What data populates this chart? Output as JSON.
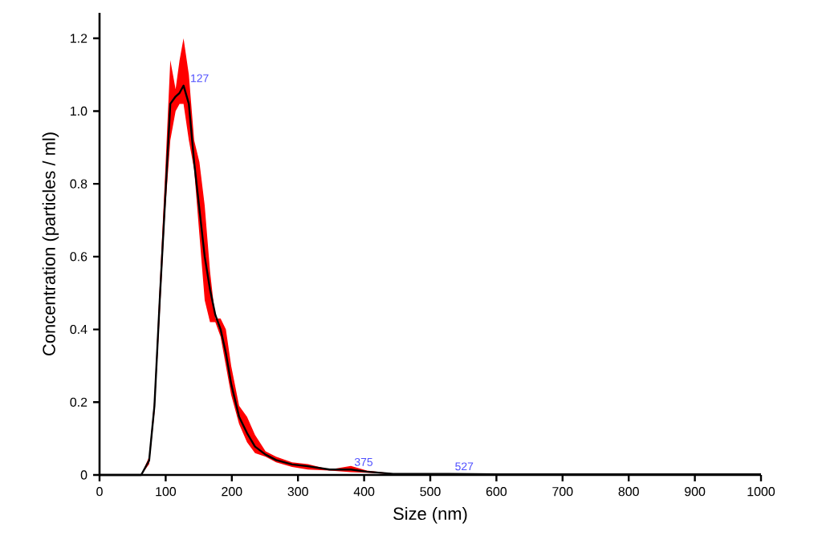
{
  "chart_data": {
    "type": "line",
    "xlabel": "Size (nm)",
    "ylabel": "Concentration (particles / ml)",
    "xlim": [
      0,
      1000
    ],
    "ylim": [
      0,
      1.27
    ],
    "xticks": [
      0,
      100,
      200,
      300,
      400,
      500,
      600,
      700,
      800,
      900,
      1000
    ],
    "yticks": [
      0,
      0.2,
      0.4,
      0.6,
      0.8,
      {
        "value": 1,
        "label": "1.0"
      },
      1.2
    ],
    "series": [
      {
        "color": "#000000",
        "x": [
          0,
          63,
          75,
          83,
          91,
          99,
          107,
          115,
          121,
          127,
          135,
          143,
          151,
          159,
          167,
          175,
          183,
          191,
          199,
          211,
          223,
          235,
          251,
          267,
          291,
          315,
          348,
          380,
          404,
          444,
          527,
          600,
          1000
        ],
        "values": [
          0,
          0,
          0.04,
          0.19,
          0.48,
          0.75,
          1.02,
          1.04,
          1.05,
          1.07,
          1.02,
          0.86,
          0.73,
          0.6,
          0.51,
          0.44,
          0.4,
          0.335,
          0.25,
          0.16,
          0.115,
          0.078,
          0.056,
          0.041,
          0.029,
          0.024,
          0.015,
          0.015,
          0.009,
          0.003,
          0.003,
          0.002,
          0.002
        ],
        "upper": [
          0,
          0,
          0.05,
          0.21,
          0.52,
          0.82,
          1.14,
          1.06,
          1.14,
          1.2,
          1.1,
          0.92,
          0.86,
          0.74,
          0.56,
          0.43,
          0.43,
          0.4,
          0.3,
          0.19,
          0.16,
          0.11,
          0.065,
          0.05,
          0.035,
          0.03,
          0.015,
          0.025,
          0.012,
          0.004,
          0.003,
          0.002,
          0.002
        ],
        "lower": [
          0,
          0,
          0.03,
          0.17,
          0.44,
          0.72,
          0.92,
          1.0,
          1.02,
          1.02,
          0.92,
          0.84,
          0.66,
          0.48,
          0.42,
          0.42,
          0.38,
          0.3,
          0.22,
          0.14,
          0.09,
          0.06,
          0.05,
          0.035,
          0.022,
          0.015,
          0.012,
          0.008,
          0.006,
          0.002,
          0.003,
          0.002,
          0.002
        ]
      }
    ],
    "annotations": [
      {
        "text": "127",
        "x": 127,
        "y": 1.07
      },
      {
        "text": "375",
        "x": 375,
        "y": 0.015
      },
      {
        "text": "527",
        "x": 527,
        "y": 0.003
      }
    ]
  }
}
